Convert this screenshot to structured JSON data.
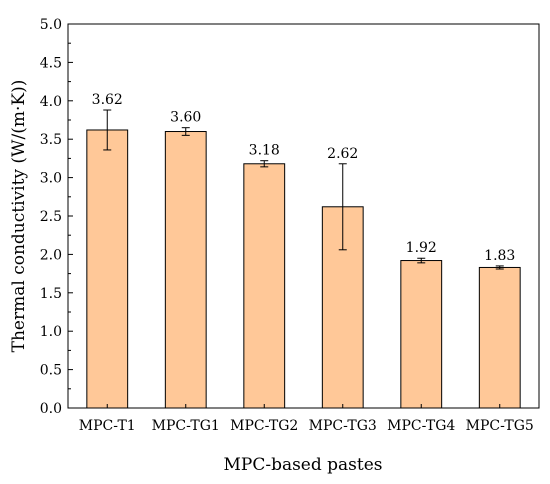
{
  "chart_data": {
    "type": "bar",
    "title": "",
    "xlabel": "MPC-based pastes",
    "ylabel": "Thermal conductivity (W/(m·K))",
    "ylim": [
      0,
      5.0
    ],
    "yticks": [
      "0.0",
      "0.5",
      "1.0",
      "1.5",
      "2.0",
      "2.5",
      "3.0",
      "3.5",
      "4.0",
      "4.5",
      "5.0"
    ],
    "grid": false,
    "legend": "none",
    "categories": [
      "MPC-T1",
      "MPC-TG1",
      "MPC-TG2",
      "MPC-TG3",
      "MPC-TG4",
      "MPC-TG5"
    ],
    "values": [
      3.62,
      3.6,
      3.18,
      2.62,
      1.92,
      1.83
    ],
    "value_labels": [
      "3.62",
      "3.60",
      "3.18",
      "2.62",
      "1.92",
      "1.83"
    ],
    "error": [
      0.26,
      0.05,
      0.04,
      0.56,
      0.03,
      0.02
    ],
    "bar_color": "#FFC898",
    "edge_color": "#000000"
  }
}
